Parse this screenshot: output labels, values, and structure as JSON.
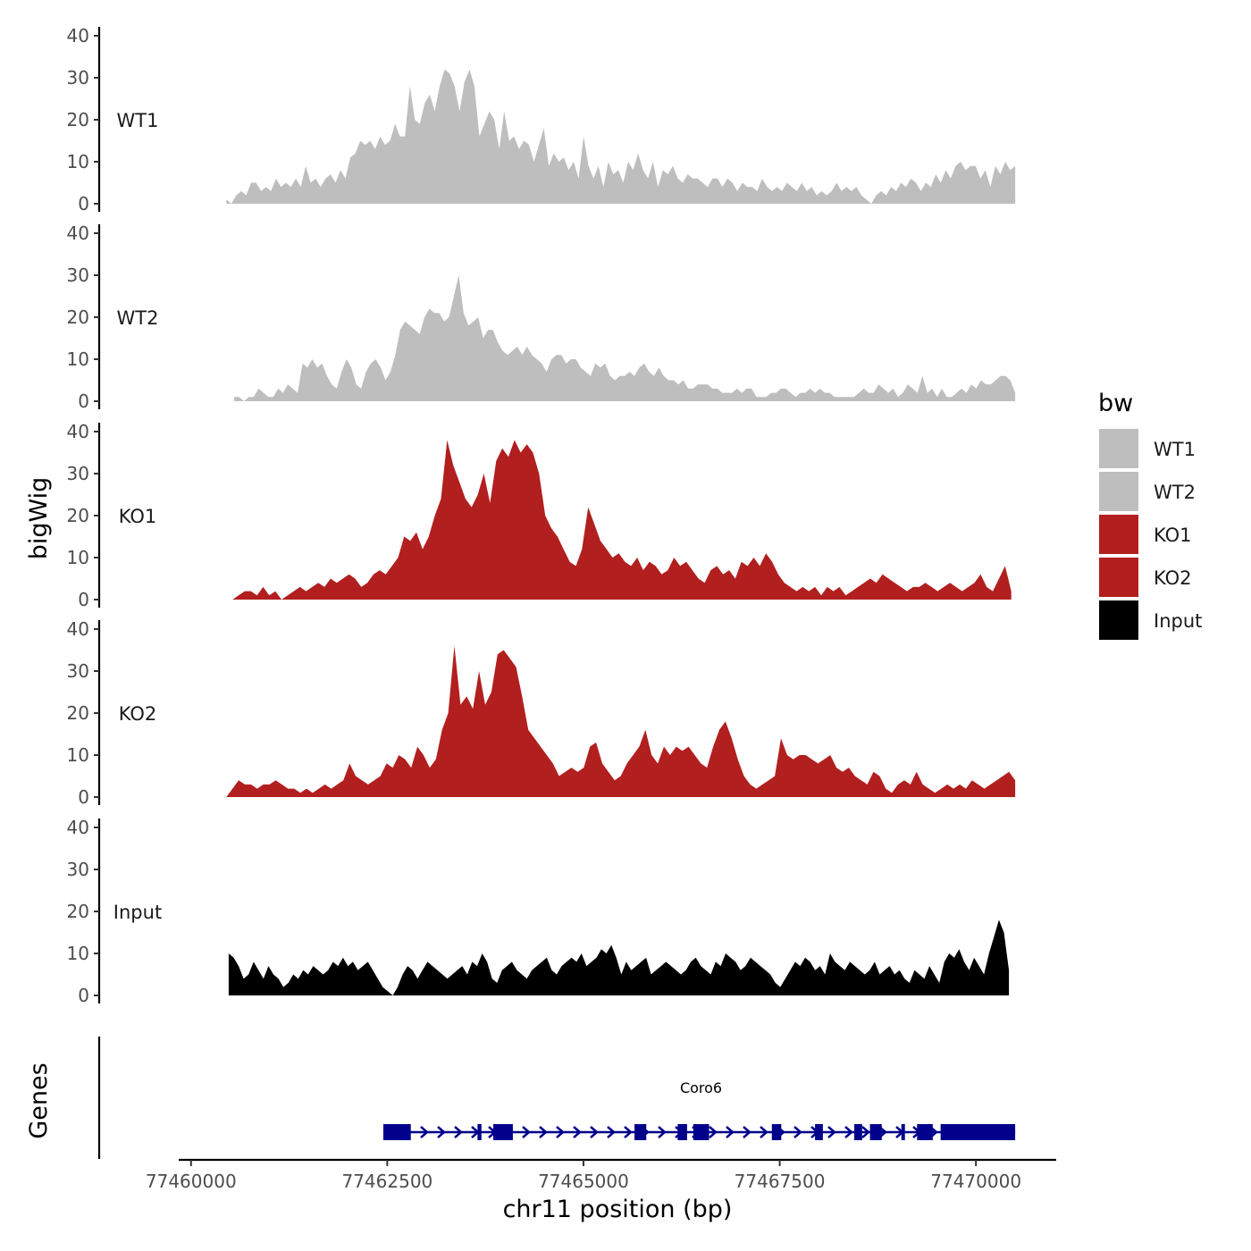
{
  "chart_data": {
    "type": "area",
    "chromosome": "chr11",
    "xlabel": "chr11 position (bp)",
    "ylabel": "bigWig",
    "genes_label": "Genes",
    "xlim": [
      77459900,
      77471000
    ],
    "xticks": [
      77460000,
      77462500,
      77465000,
      77467500,
      77470000
    ],
    "xtick_labels": [
      "77460000",
      "77462500",
      "77465000",
      "77467500",
      "77470000"
    ],
    "ylim": [
      0,
      40
    ],
    "yticks": [
      0,
      10,
      20,
      30,
      40
    ],
    "ytick_labels": [
      "0",
      "10",
      "20",
      "30",
      "40"
    ],
    "legend": {
      "title": "bw",
      "entries": [
        {
          "label": "WT1",
          "color": "#bebebe"
        },
        {
          "label": "WT2",
          "color": "#bebebe"
        },
        {
          "label": "KO1",
          "color": "#b21f1f"
        },
        {
          "label": "KO2",
          "color": "#b21f1f"
        },
        {
          "label": "Input",
          "color": "#000000"
        }
      ]
    },
    "series": [
      {
        "name": "WT1",
        "color": "#bebebe",
        "x_start": 77460450,
        "x_end": 77470500,
        "values": [
          1,
          0,
          2,
          3,
          2,
          5,
          5,
          3,
          4,
          3,
          6,
          4,
          5,
          4,
          6,
          4,
          9,
          5,
          6,
          4,
          6,
          7,
          5,
          8,
          6,
          11,
          12,
          15,
          14,
          15,
          13,
          16,
          14,
          15,
          19,
          16,
          16,
          28,
          20,
          19,
          24,
          26,
          22,
          28,
          32,
          31,
          28,
          22,
          29,
          32,
          28,
          16,
          19,
          22,
          20,
          13,
          22,
          15,
          16,
          13,
          15,
          14,
          10,
          14,
          18,
          9,
          12,
          10,
          11,
          8,
          10,
          6,
          16,
          9,
          6,
          9,
          4,
          10,
          7,
          8,
          5,
          10,
          8,
          12,
          8,
          6,
          10,
          4,
          8,
          7,
          9,
          6,
          5,
          7,
          6,
          6,
          5,
          4,
          6,
          6,
          4,
          6,
          5,
          3,
          5,
          4,
          4,
          3,
          6,
          4,
          3,
          4,
          3,
          5,
          4,
          3,
          5,
          3,
          4,
          2,
          3,
          2,
          3,
          5,
          3,
          4,
          3,
          4,
          2,
          1,
          0,
          2,
          3,
          2,
          4,
          3,
          5,
          4,
          6,
          5,
          3,
          5,
          4,
          7,
          5,
          8,
          6,
          9,
          10,
          8,
          9,
          9,
          6,
          8,
          4,
          9,
          7,
          10,
          8,
          9
        ]
      },
      {
        "name": "WT2",
        "color": "#bebebe",
        "x_start": 77460550,
        "x_end": 77470500,
        "values": [
          1,
          1,
          0,
          1,
          1,
          3,
          2,
          1,
          1,
          3,
          2,
          4,
          3,
          2,
          9,
          8,
          10,
          8,
          9,
          6,
          4,
          3,
          7,
          10,
          8,
          4,
          3,
          7,
          9,
          10,
          8,
          5,
          7,
          11,
          17,
          19,
          18,
          17,
          16,
          20,
          22,
          21,
          21,
          19,
          20,
          25,
          30,
          21,
          18,
          19,
          20,
          15,
          17,
          17,
          14,
          12,
          11,
          12,
          13,
          11,
          13,
          11,
          10,
          9,
          7,
          10,
          11,
          11,
          9,
          10,
          10,
          8,
          7,
          6,
          9,
          8,
          9,
          6,
          5,
          6,
          6,
          7,
          6,
          8,
          9,
          7,
          6,
          8,
          6,
          5,
          5,
          4,
          5,
          3,
          3,
          4,
          4,
          4,
          3,
          3,
          2,
          2,
          2,
          3,
          2,
          3,
          3,
          1,
          1,
          1,
          2,
          2,
          3,
          3,
          2,
          1,
          2,
          2,
          3,
          2,
          3,
          2,
          2,
          1,
          1,
          1,
          1,
          1,
          2,
          3,
          2,
          2,
          4,
          3,
          2,
          3,
          1,
          2,
          4,
          3,
          2,
          6,
          2,
          3,
          1,
          3,
          1,
          1,
          2,
          3,
          2,
          4,
          3,
          5,
          4,
          4,
          5,
          6,
          6,
          5,
          2
        ]
      },
      {
        "name": "KO1",
        "color": "#b21f1f",
        "x_start": 77460450,
        "x_end": 77470450,
        "values": [
          0,
          0,
          1,
          2,
          2,
          1,
          3,
          1,
          2,
          0,
          1,
          2,
          3,
          2,
          3,
          4,
          3,
          5,
          4,
          5,
          6,
          5,
          3,
          4,
          6,
          7,
          6,
          8,
          10,
          15,
          14,
          16,
          12,
          15,
          20,
          24,
          38,
          32,
          28,
          24,
          22,
          25,
          30,
          23,
          33,
          36,
          34,
          38,
          35,
          37,
          35,
          30,
          20,
          17,
          15,
          12,
          9,
          8,
          12,
          22,
          18,
          14,
          12,
          10,
          11,
          9,
          8,
          10,
          7,
          9,
          8,
          6,
          7,
          10,
          8,
          9,
          7,
          5,
          4,
          7,
          8,
          6,
          7,
          5,
          9,
          8,
          10,
          8,
          11,
          9,
          6,
          4,
          3,
          2,
          3,
          2,
          3,
          1,
          3,
          2,
          3,
          1,
          2,
          3,
          4,
          5,
          4,
          6,
          5,
          4,
          3,
          2,
          3,
          3,
          4,
          3,
          2,
          3,
          4,
          3,
          2,
          3,
          4,
          6,
          3,
          2,
          5,
          8,
          2
        ]
      },
      {
        "name": "KO2",
        "color": "#b21f1f",
        "x_start": 77460450,
        "x_end": 77470500,
        "values": [
          0,
          2,
          4,
          3,
          3,
          2,
          3,
          3,
          4,
          3,
          2,
          2,
          1,
          2,
          1,
          2,
          3,
          2,
          3,
          4,
          8,
          5,
          4,
          3,
          4,
          5,
          8,
          7,
          10,
          9,
          7,
          12,
          10,
          7,
          9,
          16,
          20,
          36,
          22,
          24,
          21,
          30,
          22,
          25,
          34,
          35,
          33,
          31,
          24,
          16,
          14,
          12,
          10,
          8,
          5,
          6,
          7,
          6,
          7,
          12,
          13,
          8,
          6,
          4,
          5,
          8,
          10,
          12,
          16,
          10,
          8,
          12,
          10,
          12,
          11,
          12,
          10,
          8,
          7,
          12,
          16,
          18,
          14,
          9,
          5,
          3,
          2,
          3,
          4,
          5,
          14,
          10,
          9,
          10,
          10,
          9,
          8,
          9,
          10,
          7,
          6,
          7,
          5,
          4,
          3,
          6,
          5,
          2,
          1,
          3,
          4,
          3,
          6,
          3,
          2,
          1,
          2,
          3,
          2,
          3,
          2,
          4,
          3,
          2,
          3,
          4,
          5,
          6,
          4
        ]
      },
      {
        "name": "Input",
        "color": "#000000",
        "x_start": 77460480,
        "x_end": 77470420,
        "values": [
          10,
          9,
          7,
          4,
          5,
          8,
          6,
          4,
          7,
          5,
          4,
          2,
          3,
          5,
          4,
          6,
          5,
          7,
          6,
          5,
          6,
          8,
          7,
          9,
          7,
          8,
          6,
          7,
          8,
          6,
          4,
          2,
          1,
          0,
          2,
          5,
          7,
          6,
          4,
          6,
          8,
          7,
          6,
          5,
          4,
          5,
          6,
          7,
          5,
          8,
          7,
          10,
          8,
          4,
          3,
          6,
          7,
          8,
          6,
          5,
          4,
          6,
          7,
          8,
          9,
          6,
          5,
          7,
          8,
          9,
          8,
          10,
          7,
          8,
          9,
          11,
          10,
          12,
          9,
          5,
          8,
          6,
          7,
          8,
          9,
          5,
          6,
          7,
          8,
          7,
          6,
          5,
          6,
          8,
          9,
          7,
          6,
          5,
          8,
          7,
          10,
          9,
          8,
          6,
          7,
          9,
          8,
          7,
          6,
          5,
          3,
          2,
          4,
          6,
          8,
          7,
          9,
          8,
          6,
          7,
          5,
          10,
          8,
          7,
          6,
          8,
          7,
          6,
          5,
          6,
          8,
          5,
          6,
          7,
          5,
          6,
          4,
          3,
          6,
          5,
          4,
          7,
          5,
          3,
          8,
          10,
          9,
          11,
          8,
          6,
          9,
          7,
          5,
          10,
          14,
          18,
          15,
          6
        ]
      }
    ],
    "gene": {
      "name": "Coro6",
      "color": "#00008b",
      "x_start": 77462450,
      "x_end": 77470500,
      "exons": [
        {
          "start": 77462450,
          "end": 77462800
        },
        {
          "start": 77463650,
          "end": 77463700
        },
        {
          "start": 77463850,
          "end": 77464100
        },
        {
          "start": 77465650,
          "end": 77465800
        },
        {
          "start": 77466200,
          "end": 77466320
        },
        {
          "start": 77466400,
          "end": 77466600
        },
        {
          "start": 77467400,
          "end": 77467520
        },
        {
          "start": 77467950,
          "end": 77468050
        },
        {
          "start": 77468450,
          "end": 77468550
        },
        {
          "start": 77468650,
          "end": 77468800
        },
        {
          "start": 77469050,
          "end": 77469090
        },
        {
          "start": 77469250,
          "end": 77469450
        },
        {
          "start": 77469550,
          "end": 77470500
        }
      ]
    }
  }
}
